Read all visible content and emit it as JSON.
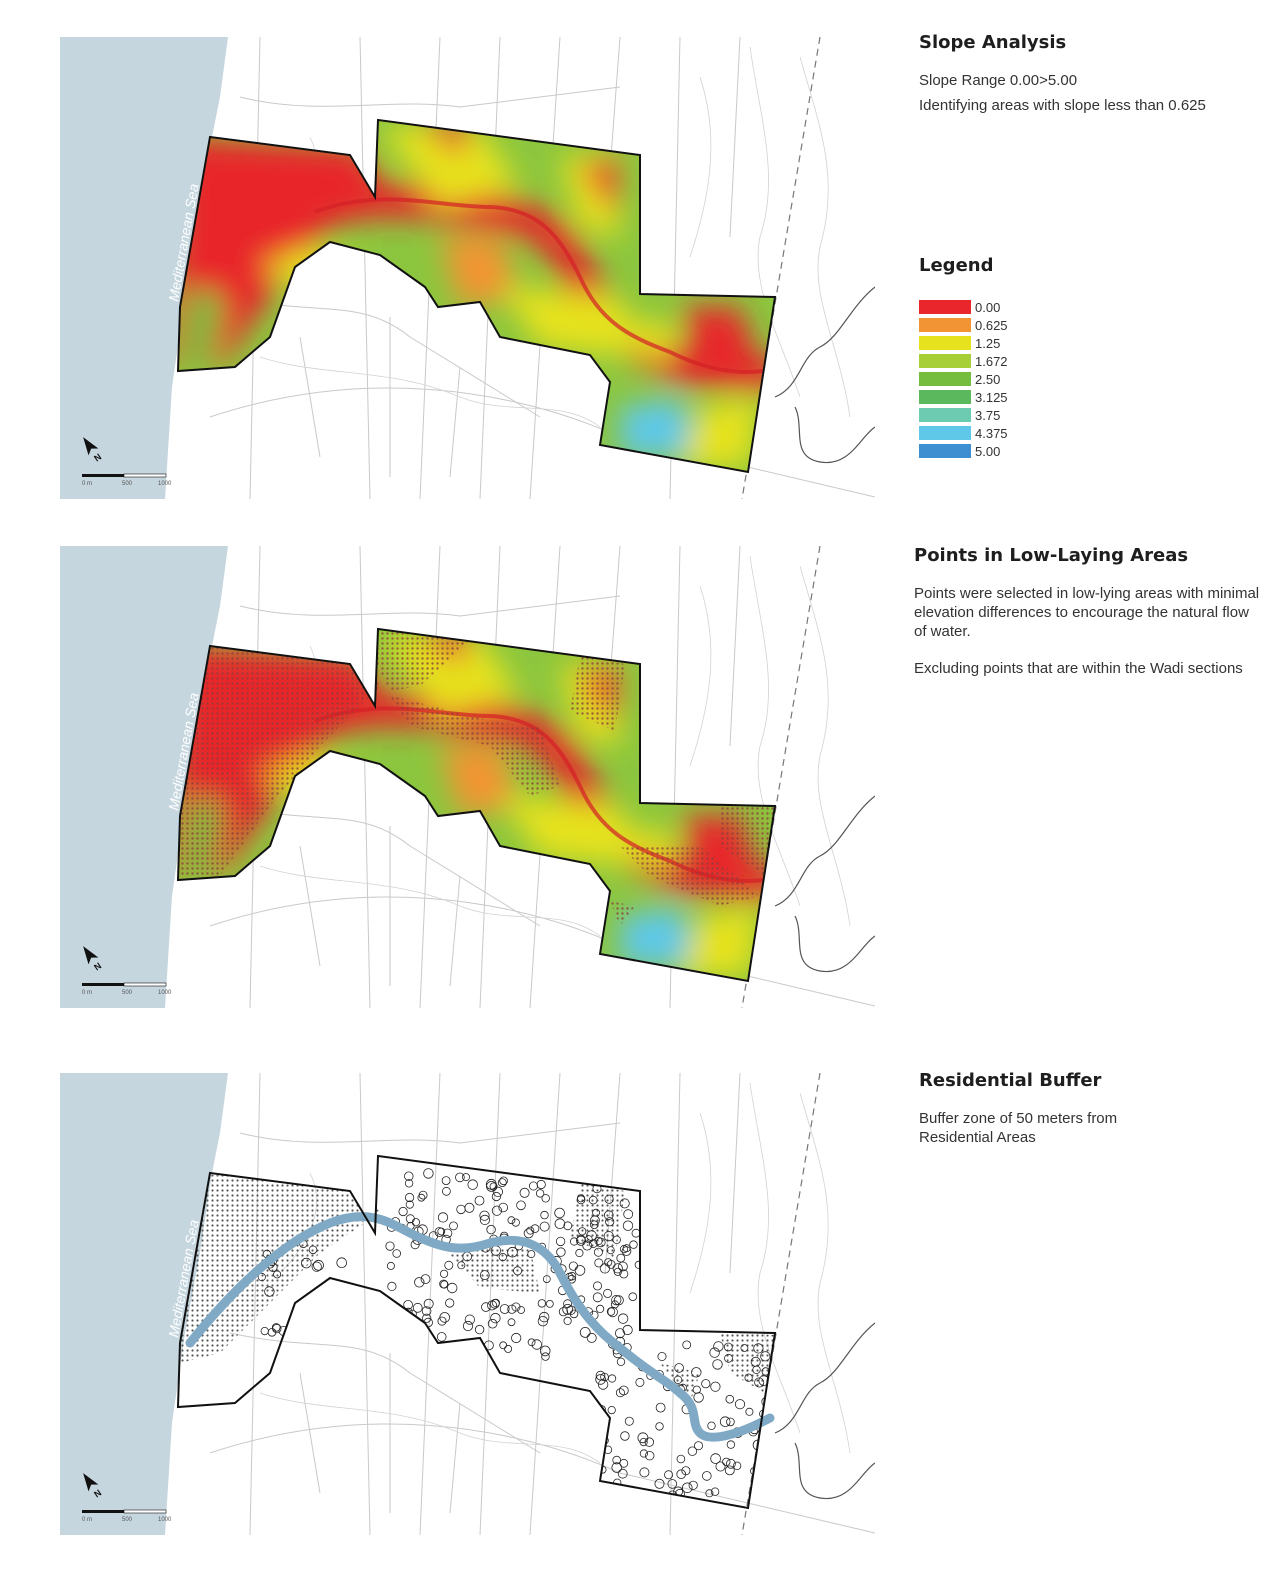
{
  "panels": [
    {
      "title": "Slope Analysis",
      "paragraphs": [
        "Slope Range 0.00>5.00",
        "Identifying areas with slope less than 0.625"
      ],
      "sea_label": "Mediterranean Sea",
      "scale": {
        "start": "0 m",
        "mid": "500",
        "end": "1000"
      },
      "mode": "slope"
    },
    {
      "title": "Points in Low-Laying Areas",
      "paragraphs": [
        "Points were selected in low-lying areas with minimal elevation differences to encourage the natural flow of water.",
        "Excluding points that are within the Wadi sections"
      ],
      "sea_label": "Mediterranean Sea",
      "scale": {
        "start": "0 m",
        "mid": "500",
        "end": "1000"
      },
      "mode": "points"
    },
    {
      "title": "Residential Buffer",
      "paragraphs": [
        "Buffer zone of 50 meters from Residential Areas"
      ],
      "sea_label": "Mediterranean Sea",
      "scale": {
        "start": "0 m",
        "mid": "500",
        "end": "1000"
      },
      "mode": "buffer"
    }
  ],
  "legend": {
    "title": "Legend",
    "items": [
      {
        "label": "0.00",
        "color": "#e8262b"
      },
      {
        "label": "0.625",
        "color": "#f29433"
      },
      {
        "label": "1.25",
        "color": "#e6e21e"
      },
      {
        "label": "1.672",
        "color": "#a6cf38"
      },
      {
        "label": "2.50",
        "color": "#74bd3f"
      },
      {
        "label": "3.125",
        "color": "#5cb85c"
      },
      {
        "label": "3.75",
        "color": "#6ccbb0"
      },
      {
        "label": "4.375",
        "color": "#5fc8e8"
      },
      {
        "label": "5.00",
        "color": "#3d8fd1"
      }
    ]
  },
  "colors": {
    "sea": "#c6d6df",
    "wadi": "#7fa9c4",
    "boundary": "#111111",
    "road": "#c9c9c9"
  }
}
